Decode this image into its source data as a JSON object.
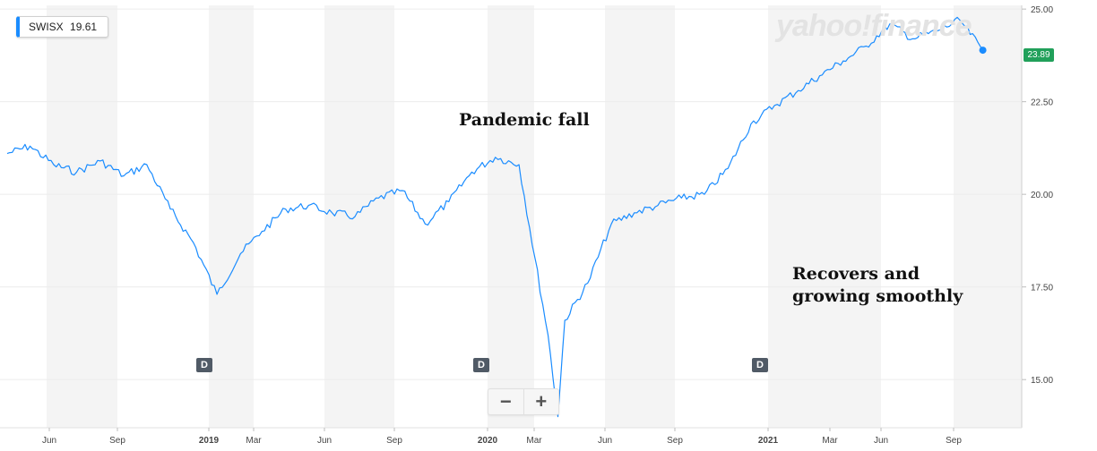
{
  "ticker": {
    "symbol": "SWISX",
    "value": "19.61"
  },
  "watermark": "yahoo!finance",
  "annotations": {
    "fall": "Pandemic fall",
    "recover": "Recovers and growing smoothly"
  },
  "last_price_tag": "23.89",
  "dividend_marker": "D",
  "zoom": {
    "minus": "−",
    "plus": "+"
  },
  "colors": {
    "line": "#1a8cff",
    "price_tag": "#21a05a",
    "band": "#f4f4f4",
    "marker": "#505a66"
  },
  "chart_data": {
    "type": "line",
    "yticks": [
      "25.00",
      "22.50",
      "20.00",
      "17.50",
      "15.00"
    ],
    "xtick_labels": [
      "Jun",
      "Sep",
      "2019",
      "Mar",
      "Jun",
      "Sep",
      "2020",
      "Mar",
      "Jun",
      "Sep",
      "2021",
      "Mar",
      "Jun",
      "Sep"
    ],
    "ylim": [
      13.7,
      25.1
    ],
    "grid": true,
    "series": [
      {
        "x": [
          "2018-04",
          "2018-05",
          "2018-06",
          "2018-07",
          "2018-08",
          "2018-09",
          "2018-10",
          "2018-11",
          "2018-12",
          "2019-01",
          "2019-02",
          "2019-03",
          "2019-04",
          "2019-05",
          "2019-06",
          "2019-07",
          "2019-08",
          "2019-09",
          "2019-10",
          "2019-11",
          "2019-12",
          "2020-01",
          "2020-02",
          "2020-03-10",
          "2020-03-23",
          "2020-04",
          "2020-05",
          "2020-06",
          "2020-07",
          "2020-08",
          "2020-09",
          "2020-10",
          "2020-11",
          "2020-12",
          "2021-01",
          "2021-02",
          "2021-03",
          "2021-04",
          "2021-05",
          "2021-06",
          "2021-07",
          "2021-08",
          "2021-09",
          "2021-10"
        ],
        "values": [
          21.1,
          21.3,
          20.8,
          20.6,
          20.9,
          20.5,
          20.8,
          19.6,
          18.7,
          17.3,
          18.4,
          19.0,
          19.6,
          19.7,
          19.5,
          19.4,
          19.9,
          20.1,
          19.2,
          19.8,
          20.6,
          21.0,
          20.8,
          16.2,
          14.0,
          16.6,
          17.6,
          19.2,
          19.5,
          19.7,
          19.9,
          20.0,
          20.7,
          21.9,
          22.4,
          22.8,
          23.2,
          23.6,
          24.0,
          24.6,
          24.2,
          24.4,
          24.7,
          23.89
        ]
      }
    ]
  }
}
